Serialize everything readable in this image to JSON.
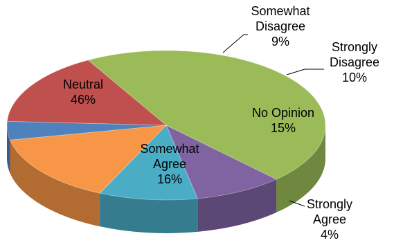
{
  "chart_data": {
    "type": "pie",
    "title": "",
    "slices": [
      {
        "label_lines": [
          "Neutral",
          "46%"
        ],
        "value": 46,
        "color": "#9bbb59"
      },
      {
        "label_lines": [
          "Somewhat",
          "Disagree",
          "9%"
        ],
        "value": 9,
        "color": "#8064a2"
      },
      {
        "label_lines": [
          "Strongly",
          "Disagree",
          "10%"
        ],
        "value": 10,
        "color": "#4bacc6"
      },
      {
        "label_lines": [
          "No Opinion",
          "15%"
        ],
        "value": 15,
        "color": "#f79646"
      },
      {
        "label_lines": [
          "Strongly",
          "Agree",
          "4%"
        ],
        "value": 4,
        "color": "#4f81bd"
      },
      {
        "label_lines": [
          "Somewhat",
          "Agree",
          "16%"
        ],
        "value": 16,
        "color": "#c0504d"
      }
    ]
  }
}
